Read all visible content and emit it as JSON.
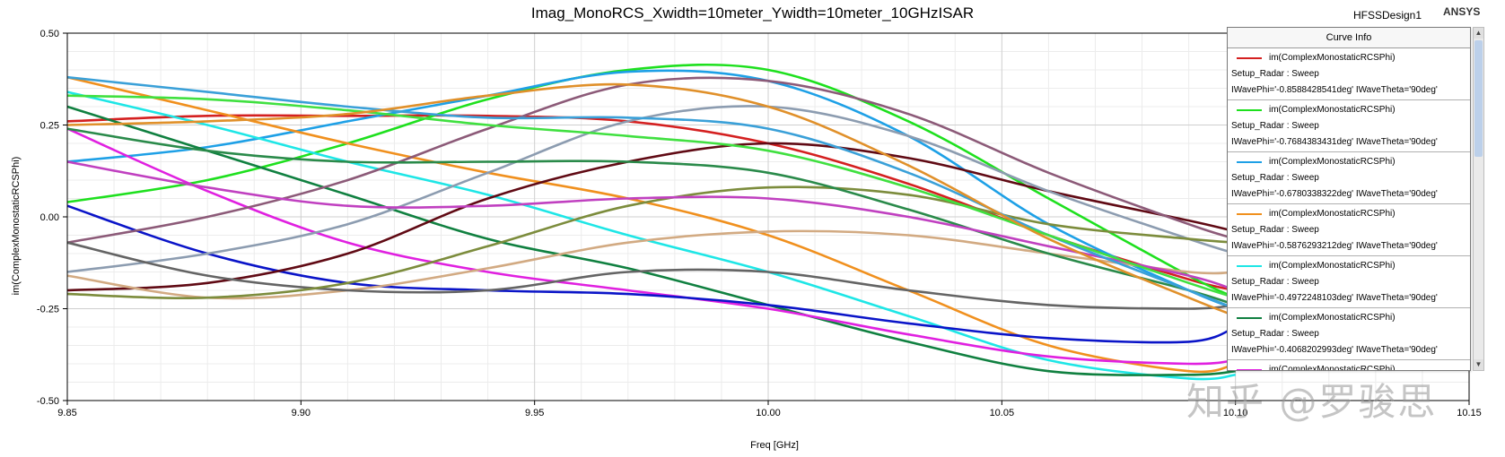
{
  "header": {
    "design_name": "HFSSDesign1",
    "brand": "ANSYS"
  },
  "legend": {
    "title": "Curve Info"
  },
  "watermark": "知乎 @罗骏思",
  "chart_data": {
    "type": "line",
    "title": "Imag_MonoRCS_Xwidth=10meter_Ywidth=10meter_10GHzISAR",
    "xlabel": "Freq [GHz]",
    "ylabel": "im(ComplexMonostaticRCSPhi)",
    "xlim": [
      9.85,
      10.15
    ],
    "ylim": [
      -0.5,
      0.5
    ],
    "xticks": [
      9.85,
      9.9,
      9.95,
      10.0,
      10.05,
      10.1,
      10.15
    ],
    "xtick_labels": [
      "9.85",
      "9.90",
      "9.95",
      "10.00",
      "10.05",
      "10.10",
      "10.15"
    ],
    "yticks": [
      0.5,
      0.25,
      0.0,
      -0.25,
      -0.5
    ],
    "ytick_labels": [
      "0.50",
      "0.25",
      "0.00",
      "-0.25",
      "-0.50"
    ],
    "grid": true,
    "legend_position": "top-right",
    "series": [
      {
        "name": "im(ComplexMonostaticRCSPhi)",
        "setup": "Setup_Radar : Sweep",
        "params": "IWavePhi='-0.8588428541deg' IWaveTheta='90deg'",
        "color": "#d42020",
        "x": [
          9.85,
          9.88,
          9.91,
          9.94,
          9.97,
          10.0,
          10.03,
          10.06,
          10.09,
          10.1
        ],
        "y": [
          0.26,
          0.275,
          0.275,
          0.275,
          0.26,
          0.2,
          0.09,
          -0.05,
          -0.17,
          -0.2
        ]
      },
      {
        "name": "im(ComplexMonostaticRCSPhi)",
        "setup": "Setup_Radar : Sweep",
        "params": "IWavePhi='-0.7684383431deg' IWaveTheta='90deg'",
        "color": "#1ee01e",
        "x": [
          9.85,
          9.88,
          9.91,
          9.94,
          9.97,
          10.0,
          10.03,
          10.06,
          10.09,
          10.1
        ],
        "y": [
          0.04,
          0.1,
          0.2,
          0.32,
          0.4,
          0.4,
          0.26,
          0.05,
          -0.16,
          -0.22
        ]
      },
      {
        "name": "im(ComplexMonostaticRCSPhi)",
        "setup": "Setup_Radar : Sweep",
        "params": "IWavePhi='-0.6780338322deg' IWaveTheta='90deg'",
        "color": "#1ea0e6",
        "x": [
          9.85,
          9.88,
          9.91,
          9.94,
          9.97,
          10.0,
          10.03,
          10.06,
          10.09,
          10.1
        ],
        "y": [
          0.15,
          0.19,
          0.26,
          0.33,
          0.395,
          0.37,
          0.22,
          -0.02,
          -0.2,
          -0.25
        ]
      },
      {
        "name": "im(ComplexMonostaticRCSPhi)",
        "setup": "Setup_Radar : Sweep",
        "params": "IWavePhi='-0.5876293212deg' IWaveTheta='90deg'",
        "color": "#f0901e",
        "x": [
          9.85,
          9.88,
          9.91,
          9.94,
          9.97,
          10.0,
          10.03,
          10.06,
          10.09,
          10.1
        ],
        "y": [
          0.38,
          0.29,
          0.2,
          0.12,
          0.05,
          -0.05,
          -0.2,
          -0.35,
          -0.42,
          -0.4
        ]
      },
      {
        "name": "im(ComplexMonostaticRCSPhi)",
        "setup": "Setup_Radar : Sweep",
        "params": "IWavePhi='-0.4972248103deg' IWaveTheta='90deg'",
        "color": "#1ee6e6",
        "x": [
          9.85,
          9.88,
          9.91,
          9.94,
          9.97,
          10.0,
          10.03,
          10.06,
          10.09,
          10.1
        ],
        "y": [
          0.34,
          0.25,
          0.15,
          0.06,
          -0.05,
          -0.15,
          -0.27,
          -0.39,
          -0.44,
          -0.43
        ]
      },
      {
        "name": "im(ComplexMonostaticRCSPhi)",
        "setup": "Setup_Radar : Sweep",
        "params": "IWavePhi='-0.4068202993deg' IWaveTheta='90deg'",
        "color": "#108040",
        "x": [
          9.85,
          9.88,
          9.91,
          9.94,
          9.97,
          10.0,
          10.03,
          10.06,
          10.09,
          10.1
        ],
        "y": [
          0.3,
          0.18,
          0.06,
          -0.06,
          -0.14,
          -0.24,
          -0.34,
          -0.42,
          -0.43,
          -0.42
        ]
      },
      {
        "name": "im(ComplexMonostaticRCSPhi)",
        "setup": "",
        "params": "",
        "color": "#e020e0",
        "x": [
          9.85,
          9.88,
          9.91,
          9.94,
          9.97,
          10.0,
          10.03,
          10.06,
          10.09,
          10.1
        ],
        "y": [
          0.24,
          0.07,
          -0.07,
          -0.15,
          -0.2,
          -0.25,
          -0.32,
          -0.38,
          -0.4,
          -0.39
        ]
      },
      {
        "name": "",
        "setup": "",
        "params": "",
        "color": "#0a14c8",
        "x": [
          9.85,
          9.88,
          9.91,
          9.94,
          9.97,
          10.0,
          10.03,
          10.06,
          10.09,
          10.1
        ],
        "y": [
          0.03,
          -0.1,
          -0.18,
          -0.2,
          -0.21,
          -0.24,
          -0.29,
          -0.33,
          -0.34,
          -0.3
        ]
      },
      {
        "name": "",
        "setup": "",
        "params": "",
        "color": "#600a14",
        "x": [
          9.85,
          9.88,
          9.91,
          9.94,
          9.97,
          10.0,
          10.03,
          10.06,
          10.09,
          10.1
        ],
        "y": [
          -0.2,
          -0.18,
          -0.1,
          0.05,
          0.15,
          0.2,
          0.16,
          0.07,
          -0.01,
          -0.04
        ]
      },
      {
        "name": "",
        "setup": "",
        "params": "",
        "color": "#8c5a78",
        "x": [
          9.85,
          9.88,
          9.91,
          9.94,
          9.97,
          10.0,
          10.03,
          10.06,
          10.09,
          10.1
        ],
        "y": [
          -0.07,
          0.0,
          0.1,
          0.24,
          0.36,
          0.37,
          0.28,
          0.12,
          -0.02,
          -0.06
        ]
      },
      {
        "name": "",
        "setup": "",
        "params": "",
        "color": "#8c9cb0",
        "x": [
          9.85,
          9.88,
          9.91,
          9.94,
          9.97,
          10.0,
          10.03,
          10.06,
          10.09,
          10.1
        ],
        "y": [
          -0.15,
          -0.1,
          -0.02,
          0.12,
          0.26,
          0.3,
          0.22,
          0.07,
          -0.06,
          -0.1
        ]
      },
      {
        "name": "",
        "setup": "",
        "params": "",
        "color": "#d2aa82",
        "x": [
          9.85,
          9.88,
          9.91,
          9.94,
          9.97,
          10.0,
          10.03,
          10.06,
          10.09,
          10.1
        ],
        "y": [
          -0.16,
          -0.22,
          -0.2,
          -0.14,
          -0.07,
          -0.04,
          -0.05,
          -0.1,
          -0.15,
          -0.15
        ]
      },
      {
        "name": "",
        "setup": "",
        "params": "",
        "color": "#646464",
        "x": [
          9.85,
          9.88,
          9.91,
          9.94,
          9.97,
          10.0,
          10.03,
          10.06,
          10.09,
          10.1
        ],
        "y": [
          -0.07,
          -0.16,
          -0.2,
          -0.2,
          -0.15,
          -0.15,
          -0.2,
          -0.24,
          -0.25,
          -0.24
        ]
      },
      {
        "name": "",
        "setup": "",
        "params": "",
        "color": "#7c8c3c",
        "x": [
          9.85,
          9.88,
          9.91,
          9.94,
          9.97,
          10.0,
          10.03,
          10.06,
          10.09,
          10.1
        ],
        "y": [
          -0.21,
          -0.22,
          -0.18,
          -0.08,
          0.03,
          0.08,
          0.06,
          -0.02,
          -0.06,
          -0.07
        ]
      },
      {
        "name": "",
        "setup": "",
        "params": "",
        "color": "#2a8a4a",
        "x": [
          9.85,
          9.88,
          9.91,
          9.94,
          9.97,
          10.0,
          10.03,
          10.06,
          10.09,
          10.1
        ],
        "y": [
          0.24,
          0.18,
          0.15,
          0.15,
          0.15,
          0.12,
          0.02,
          -0.1,
          -0.2,
          -0.24
        ]
      },
      {
        "name": "",
        "setup": "",
        "params": "",
        "color": "#c040c0",
        "x": [
          9.85,
          9.88,
          9.91,
          9.94,
          9.97,
          10.0,
          10.03,
          10.06,
          10.09,
          10.1
        ],
        "y": [
          0.15,
          0.08,
          0.03,
          0.03,
          0.05,
          0.05,
          0.0,
          -0.08,
          -0.16,
          -0.2
        ]
      },
      {
        "name": "",
        "setup": "",
        "params": "",
        "color": "#3aa0d8",
        "x": [
          9.85,
          9.88,
          9.91,
          9.94,
          9.97,
          10.0,
          10.03,
          10.06,
          10.09,
          10.1
        ],
        "y": [
          0.38,
          0.34,
          0.3,
          0.27,
          0.27,
          0.24,
          0.12,
          -0.05,
          -0.2,
          -0.25
        ]
      },
      {
        "name": "",
        "setup": "",
        "params": "",
        "color": "#40e040",
        "x": [
          9.85,
          9.88,
          9.91,
          9.94,
          9.97,
          10.0,
          10.03,
          10.06,
          10.09,
          10.1
        ],
        "y": [
          0.33,
          0.32,
          0.29,
          0.25,
          0.22,
          0.18,
          0.08,
          -0.05,
          -0.18,
          -0.22
        ]
      },
      {
        "name": "",
        "setup": "",
        "params": "",
        "color": "#e0902a",
        "x": [
          9.85,
          9.88,
          9.91,
          9.94,
          9.97,
          10.0,
          10.03,
          10.06,
          10.09,
          10.1
        ],
        "y": [
          0.25,
          0.26,
          0.28,
          0.33,
          0.36,
          0.3,
          0.14,
          -0.06,
          -0.22,
          -0.27
        ]
      }
    ]
  }
}
